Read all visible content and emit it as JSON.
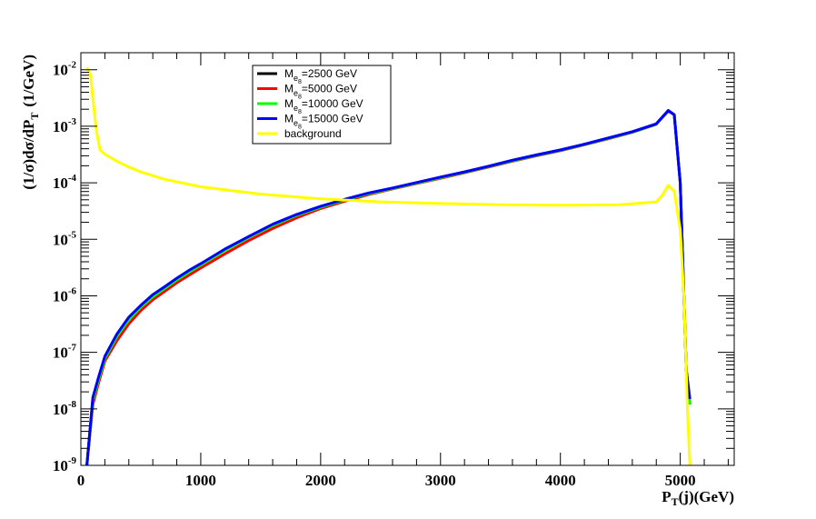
{
  "chart_data": {
    "type": "line",
    "title": "",
    "xlabel": {
      "main": "P",
      "sub": "T",
      "rest": "(j)(GeV)"
    },
    "ylabel": {
      "main": "(1/σ)dσ/dP",
      "sub": "T",
      "rest": "(1/GeV)"
    },
    "x_scale": "linear",
    "y_scale": "log",
    "xlim": [
      0,
      5450
    ],
    "ylim": [
      1e-09,
      0.02
    ],
    "x_ticks": [
      0,
      1000,
      2000,
      3000,
      4000,
      5000
    ],
    "x_tick_labels": [
      "0",
      "1000",
      "2000",
      "3000",
      "4000",
      "5000"
    ],
    "y_ticks": [
      1e-09,
      1e-08,
      1e-07,
      1e-06,
      1e-05,
      0.0001,
      0.001,
      0.01
    ],
    "y_tick_labels": [
      {
        "base": "10",
        "exp": "-9"
      },
      {
        "base": "10",
        "exp": "-8"
      },
      {
        "base": "10",
        "exp": "-7"
      },
      {
        "base": "10",
        "exp": "-6"
      },
      {
        "base": "10",
        "exp": "-5"
      },
      {
        "base": "10",
        "exp": "-4"
      },
      {
        "base": "10",
        "exp": "-3"
      },
      {
        "base": "10",
        "exp": "-2"
      }
    ],
    "grid": false,
    "legend_position": "top-left",
    "series": [
      {
        "label": {
          "pre": "M",
          "sub": "e",
          "subsub": "8",
          "post": "=2500 GeV"
        },
        "color": "#000000",
        "x": [
          50,
          100,
          150,
          200,
          300,
          400,
          500,
          600,
          700,
          800,
          900,
          1000,
          1200,
          1400,
          1600,
          1800,
          2000,
          2200,
          2400,
          2600,
          2800,
          3000,
          3200,
          3400,
          3600,
          3800,
          4000,
          4200,
          4400,
          4600,
          4800,
          4900,
          4950,
          5000,
          5050,
          5080
        ],
        "y": [
          1e-09,
          1.5e-08,
          3.5e-08,
          8e-08,
          2e-07,
          4e-07,
          6.5e-07,
          1e-06,
          1.4e-06,
          2e-06,
          2.7e-06,
          3.6e-06,
          6.5e-06,
          1.1e-05,
          1.8e-05,
          2.7e-05,
          3.8e-05,
          5e-05,
          6.5e-05,
          8e-05,
          0.0001,
          0.000125,
          0.000155,
          0.000195,
          0.00025,
          0.00031,
          0.00038,
          0.00048,
          0.00062,
          0.0008,
          0.0011,
          0.0019,
          0.0016,
          0.0001,
          5e-08,
          1.2e-08
        ]
      },
      {
        "label": {
          "pre": "M",
          "sub": "e",
          "subsub": "8",
          "post": "=5000 GeV"
        },
        "color": "#ff0000",
        "x": [
          50,
          100,
          150,
          200,
          300,
          400,
          500,
          600,
          700,
          800,
          900,
          1000,
          1200,
          1400,
          1600,
          1800,
          2000,
          2200,
          2400,
          2600,
          2800,
          3000,
          3200,
          3400,
          3600,
          3800,
          4000,
          4200,
          4400,
          4600,
          4800,
          4900,
          4950,
          5000,
          5050,
          5080
        ],
        "y": [
          1e-09,
          1.2e-08,
          3e-08,
          7e-08,
          1.6e-07,
          3.2e-07,
          5.5e-07,
          8.5e-07,
          1.2e-06,
          1.7e-06,
          2.3e-06,
          3.1e-06,
          5.5e-06,
          9.5e-06,
          1.55e-05,
          2.4e-05,
          3.5e-05,
          4.7e-05,
          6.2e-05,
          7.8e-05,
          9.7e-05,
          0.00012,
          0.00015,
          0.00019,
          0.00024,
          0.0003,
          0.00037,
          0.00047,
          0.0006,
          0.00078,
          0.00108,
          0.00185,
          0.0016,
          0.0001,
          5e-08,
          1.2e-08
        ]
      },
      {
        "label": {
          "pre": "M",
          "sub": "e",
          "subsub": "8",
          "post": "=10000 GeV"
        },
        "color": "#00ff00",
        "x": [
          50,
          100,
          150,
          200,
          300,
          400,
          500,
          600,
          700,
          800,
          900,
          1000,
          1200,
          1400,
          1600,
          1800,
          2000,
          2200,
          2400,
          2600,
          2800,
          3000,
          3200,
          3400,
          3600,
          3800,
          4000,
          4200,
          4400,
          4600,
          4800,
          4900,
          4950,
          5000,
          5050,
          5080
        ],
        "y": [
          1e-09,
          1.4e-08,
          3.4e-08,
          7.8e-08,
          1.9e-07,
          3.8e-07,
          6.3e-07,
          9.6e-07,
          1.35e-06,
          1.9e-06,
          2.6e-06,
          3.5e-06,
          6.3e-06,
          1.08e-05,
          1.75e-05,
          2.65e-05,
          3.7e-05,
          4.95e-05,
          6.4e-05,
          7.95e-05,
          9.9e-05,
          0.000123,
          0.000153,
          0.000193,
          0.000245,
          0.000305,
          0.000375,
          0.000475,
          0.00061,
          0.00079,
          0.00109,
          0.00188,
          0.0016,
          0.0001,
          5e-08,
          1.2e-08
        ]
      },
      {
        "label": {
          "pre": "M",
          "sub": "e",
          "subsub": "8",
          "post": "=15000 GeV"
        },
        "color": "#0000ff",
        "x": [
          50,
          100,
          150,
          200,
          300,
          400,
          500,
          600,
          700,
          800,
          900,
          1000,
          1200,
          1400,
          1600,
          1800,
          2000,
          2200,
          2400,
          2600,
          2800,
          3000,
          3200,
          3400,
          3600,
          3800,
          4000,
          4200,
          4400,
          4600,
          4800,
          4900,
          4950,
          5000,
          5050,
          5080
        ],
        "y": [
          1e-09,
          1.6e-08,
          3.8e-08,
          8.5e-08,
          2.1e-07,
          4.2e-07,
          6.8e-07,
          1.05e-06,
          1.45e-06,
          2.05e-06,
          2.8e-06,
          3.7e-06,
          6.7e-06,
          1.12e-05,
          1.85e-05,
          2.75e-05,
          3.85e-05,
          5.1e-05,
          6.6e-05,
          8.1e-05,
          0.000101,
          0.000126,
          0.000156,
          0.000196,
          0.00025,
          0.00031,
          0.00038,
          0.00048,
          0.00062,
          0.0008,
          0.0011,
          0.0019,
          0.0016,
          0.0001,
          5e-08,
          1.5e-08
        ]
      },
      {
        "label": {
          "pre": "background",
          "sub": "",
          "subsub": "",
          "post": ""
        },
        "color": "#ffff00",
        "x": [
          50,
          80,
          100,
          130,
          160,
          200,
          300,
          400,
          500,
          700,
          1000,
          1500,
          2000,
          2500,
          3000,
          3500,
          4000,
          4500,
          4800,
          4850,
          4900,
          4950,
          5000,
          5030,
          5060,
          5080
        ],
        "y": [
          0.011,
          0.008,
          0.003,
          0.0008,
          0.00038,
          0.00032,
          0.00024,
          0.00019,
          0.000155,
          0.000115,
          8.5e-05,
          6.3e-05,
          5.2e-05,
          4.6e-05,
          4.3e-05,
          4.1e-05,
          4e-05,
          4.1e-05,
          4.6e-05,
          6e-05,
          9e-05,
          7e-05,
          1.5e-05,
          1e-06,
          1e-08,
          1e-09
        ]
      }
    ]
  }
}
